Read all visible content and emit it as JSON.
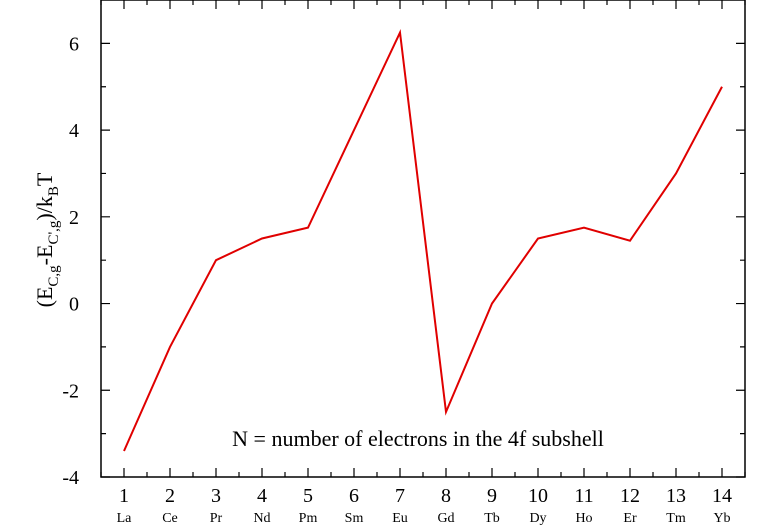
{
  "chart_data": {
    "type": "line",
    "x": [
      1,
      2,
      3,
      4,
      5,
      6,
      7,
      8,
      9,
      10,
      11,
      12,
      13,
      14
    ],
    "x_sublabels": [
      "La",
      "Ce",
      "Pr",
      "Nd",
      "Pm",
      "Sm",
      "Eu",
      "Gd",
      "Tb",
      "Dy",
      "Ho",
      "Er",
      "Tm",
      "Yb"
    ],
    "series": [
      {
        "color": "#e00000",
        "values": [
          -3.4,
          -1,
          1,
          1.5,
          1.75,
          4,
          6.25,
          -2.5,
          0,
          1.5,
          1.75,
          1.45,
          3,
          5
        ]
      }
    ],
    "xlim": [
      0.5,
      14.5
    ],
    "ylim": [
      -4,
      7
    ],
    "xticks": [
      1,
      2,
      3,
      4,
      5,
      6,
      7,
      8,
      9,
      10,
      11,
      12,
      13,
      14
    ],
    "xticks_minor": [
      0.5,
      1.5,
      2.5,
      3.5,
      4.5,
      5.5,
      6.5,
      7.5,
      8.5,
      9.5,
      10.5,
      11.5,
      12.5,
      13.5,
      14.5
    ],
    "yticks": [
      -4,
      -2,
      0,
      2,
      4,
      6
    ],
    "yticks_minor": [
      -3,
      -1,
      1,
      3,
      5
    ],
    "ylabel_parts": [
      {
        "text": "(E"
      },
      {
        "text": "C,g",
        "sub": true
      },
      {
        "text": "-E"
      },
      {
        "text": "C',g",
        "sub": true
      },
      {
        "text": ")/k"
      },
      {
        "text": "B",
        "sub": true
      },
      {
        "text": "T"
      }
    ],
    "annotation": "N = number of electrons in the 4f subshell"
  }
}
